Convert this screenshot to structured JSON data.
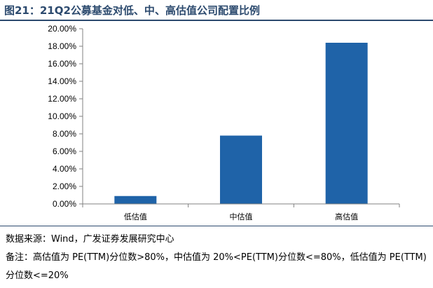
{
  "title": "图21：21Q2公募基金对低、中、高估值公司配置比例",
  "chart_data": {
    "type": "bar",
    "categories": [
      "低估值",
      "中估值",
      "高估值"
    ],
    "values": [
      0.9,
      7.8,
      18.4
    ],
    "ylim": [
      0,
      20
    ],
    "yticks": [
      "0.00%",
      "2.00%",
      "4.00%",
      "6.00%",
      "8.00%",
      "10.00%",
      "12.00%",
      "14.00%",
      "16.00%",
      "18.00%",
      "20.00%"
    ],
    "bar_color": "#1f63a8",
    "grid": false
  },
  "footer": {
    "source": "数据来源：Wind，广发证券发展研究中心",
    "note": "备注：高估值为 PE(TTM)分位数>80%，中估值为 20%<PE(TTM)分位数<=80%，低估值为 PE(TTM)分位数<=20%"
  }
}
